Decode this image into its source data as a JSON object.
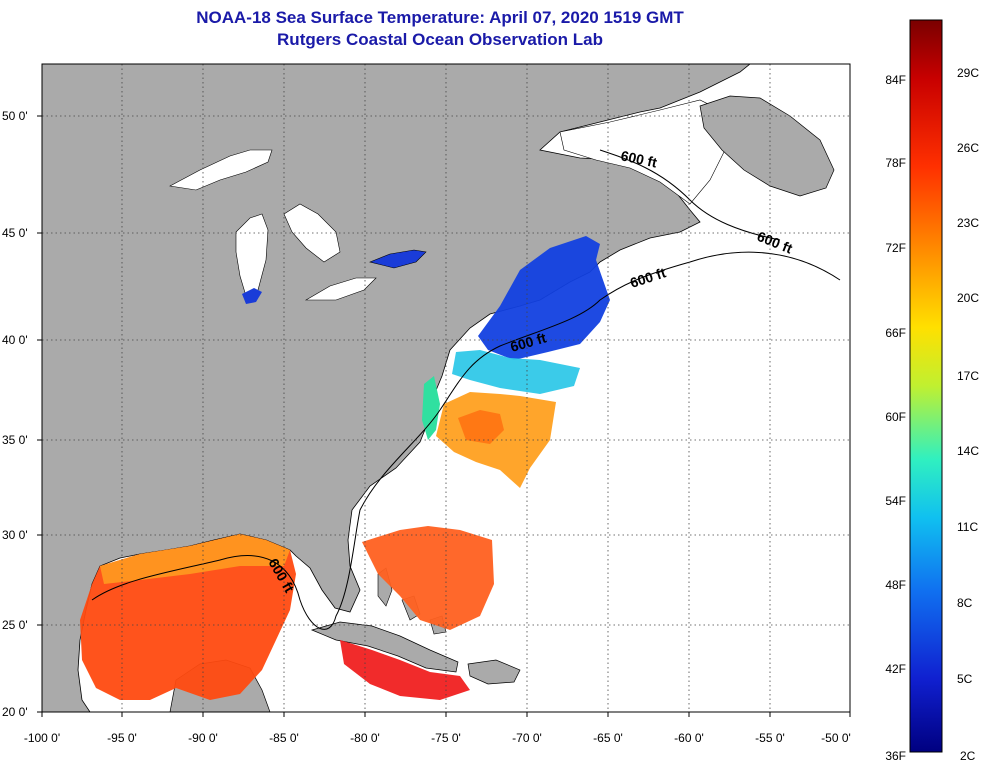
{
  "title": "NOAA-18 Sea Surface Temperature:  April 07, 2020 1519 GMT",
  "subtitle": "Rutgers Coastal Ocean Observation Lab",
  "lat_labels": [
    "50 0'",
    "45 0'",
    "40 0'",
    "35 0'",
    "30 0'",
    "25 0'",
    "20 0'"
  ],
  "lon_labels": [
    "-100 0'",
    "-95 0'",
    "-90 0'",
    "-85 0'",
    "-80 0'",
    "-75 0'",
    "-70 0'",
    "-65 0'",
    "-60 0'",
    "-55 0'",
    "-50 0'"
  ],
  "contour_labels": [
    "600 ft",
    "600 ft",
    "600 ft",
    "600 ft",
    "600 ft"
  ],
  "colorbar": {
    "f_labels": [
      "84F",
      "78F",
      "72F",
      "66F",
      "60F",
      "54F",
      "48F",
      "42F",
      "36F"
    ],
    "c_labels": [
      "29C",
      "26C",
      "23C",
      "20C",
      "17C",
      "14C",
      "11C",
      "8C",
      "5C",
      "2C"
    ],
    "colors": [
      "#7a0000",
      "#c80000",
      "#ff2a00",
      "#ff7000",
      "#ffaa00",
      "#ffe000",
      "#d8f020",
      "#70f080",
      "#10e0e0",
      "#10a8f0",
      "#1060f0",
      "#1020d0",
      "#000080"
    ]
  },
  "colors": {
    "land": "#aaaaaa",
    "ocean": "#ffffff",
    "title": "#1a1aa8"
  }
}
